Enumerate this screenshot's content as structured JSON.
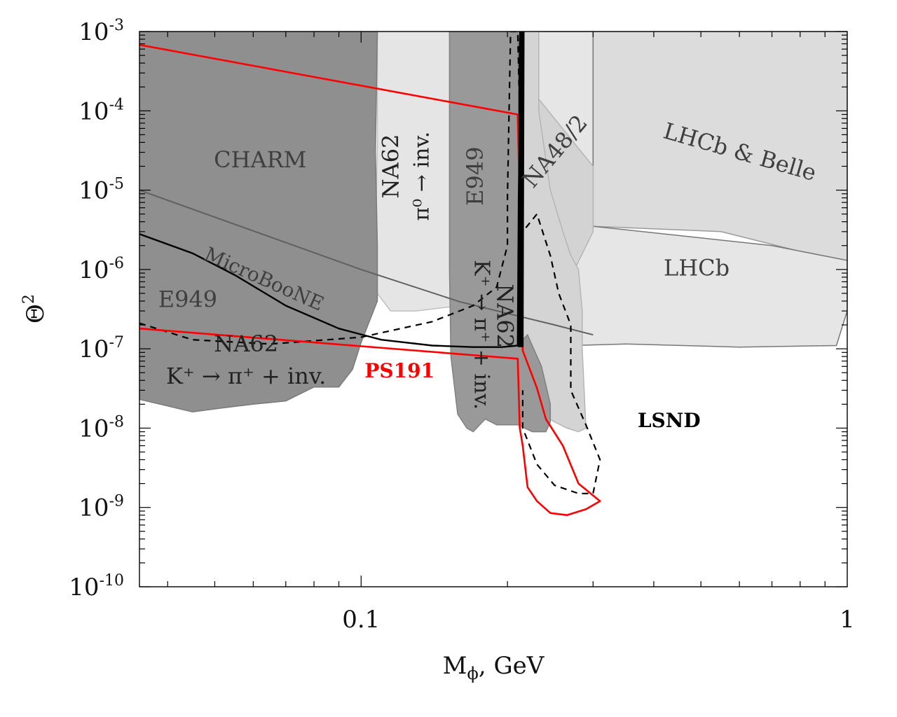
{
  "chart_data": {
    "type": "area",
    "xscale": "log",
    "yscale": "log",
    "xlim": [
      0.035,
      1
    ],
    "ylim": [
      1e-10,
      0.001
    ],
    "xlabel_main": "M",
    "xlabel_sub": "ϕ",
    "xlabel_rest": ", GeV",
    "ylabel_main": "Θ",
    "ylabel_sup": "2",
    "x_ticks": [
      {
        "value": 0.1,
        "label": "0.1"
      },
      {
        "value": 1,
        "label": "1"
      }
    ],
    "y_ticks": [
      {
        "value": 0.001,
        "base": "10",
        "exp": "-3"
      },
      {
        "value": 0.0001,
        "base": "10",
        "exp": "-4"
      },
      {
        "value": 1e-05,
        "base": "10",
        "exp": "-5"
      },
      {
        "value": 1e-06,
        "base": "10",
        "exp": "-6"
      },
      {
        "value": 1e-07,
        "base": "10",
        "exp": "-7"
      },
      {
        "value": 1e-08,
        "base": "10",
        "exp": "-8"
      },
      {
        "value": 1e-09,
        "base": "10",
        "exp": "-9"
      },
      {
        "value": 1e-10,
        "base": "10",
        "exp": "-10"
      }
    ],
    "regions": [
      {
        "fill": "#dcdcdc",
        "stroke": "#9a9a9a",
        "points": [
          [
            0.3,
            0.001
          ],
          [
            1,
            0.001
          ],
          [
            1,
            1.2e-06
          ],
          [
            0.55,
            3e-06
          ],
          [
            0.3,
            3.5e-06
          ]
        ]
      },
      {
        "fill": "#e6e6e6",
        "stroke": "#777777",
        "points": [
          [
            0.215,
            0.001
          ],
          [
            0.3,
            0.001
          ],
          [
            0.3,
            3.5e-06
          ],
          [
            0.5,
            2.5e-06
          ],
          [
            0.7,
            2e-06
          ],
          [
            1,
            1.3e-06
          ],
          [
            1,
            3e-07
          ],
          [
            0.95,
            1.1e-07
          ],
          [
            0.6,
            1.05e-07
          ],
          [
            0.35,
            1.15e-07
          ],
          [
            0.27,
            1.1e-07
          ],
          [
            0.215,
            1.1e-07
          ]
        ]
      },
      {
        "fill": "#d3d3d3",
        "stroke": "#b5b5b5",
        "points": [
          [
            0.215,
            0.001
          ],
          [
            0.23,
            0.001
          ],
          [
            0.23,
            0.00015
          ],
          [
            0.3,
            2e-05
          ],
          [
            0.3,
            3e-06
          ],
          [
            0.27,
            8e-07
          ],
          [
            0.255,
            3e-06
          ],
          [
            0.24,
            8e-06
          ],
          [
            0.225,
            1.5e-05
          ]
        ]
      },
      {
        "fill": "#e5e5e5",
        "stroke": "#c0c0c0",
        "points": [
          [
            0.108,
            0.001
          ],
          [
            0.21,
            0.001
          ],
          [
            0.215,
            3e-07
          ],
          [
            0.21,
            4e-07
          ],
          [
            0.19,
            4e-07
          ],
          [
            0.16,
            3.5e-07
          ],
          [
            0.13,
            3e-07
          ],
          [
            0.115,
            3e-07
          ],
          [
            0.108,
            5e-07
          ],
          [
            0.107,
            2e-06
          ],
          [
            0.108,
            4e-05
          ]
        ]
      },
      {
        "fill": "#d4d4d4",
        "stroke": "#b5b5b5",
        "points": [
          [
            0.215,
            0.001
          ],
          [
            0.232,
            0.001
          ],
          [
            0.232,
            0.0001
          ],
          [
            0.245,
            1e-05
          ],
          [
            0.26,
            3e-06
          ],
          [
            0.27,
            1.5e-06
          ],
          [
            0.28,
            1e-06
          ],
          [
            0.285,
            3e-07
          ],
          [
            0.285,
            1e-07
          ],
          [
            0.29,
            1e-08
          ],
          [
            0.28,
            9e-09
          ],
          [
            0.265,
            1e-08
          ],
          [
            0.25,
            1.2e-08
          ],
          [
            0.235,
            1.5e-08
          ],
          [
            0.215,
            3e-08
          ]
        ]
      },
      {
        "fill": "#8f8f8f",
        "stroke": "#7a7a7a",
        "points": [
          [
            0.035,
            0.001
          ],
          [
            0.108,
            0.001
          ],
          [
            0.107,
            3e-05
          ],
          [
            0.108,
            2e-06
          ],
          [
            0.108,
            4e-07
          ],
          [
            0.1,
            1.2e-07
          ],
          [
            0.096,
            5.5e-08
          ],
          [
            0.09,
            3.3e-08
          ],
          [
            0.08,
            3.3e-08
          ],
          [
            0.07,
            2.2e-08
          ],
          [
            0.06,
            2e-08
          ],
          [
            0.052,
            1.8e-08
          ],
          [
            0.045,
            1.6e-08
          ],
          [
            0.04,
            1.9e-08
          ],
          [
            0.035,
            2.3e-08
          ]
        ]
      },
      {
        "fill": "#999999",
        "stroke": "#808080",
        "points": [
          [
            0.152,
            0.001
          ],
          [
            0.21,
            0.001
          ],
          [
            0.213,
            1e-06
          ],
          [
            0.215,
            1.3e-07
          ],
          [
            0.22,
            1.5e-07
          ],
          [
            0.235,
            6e-08
          ],
          [
            0.245,
            2e-08
          ],
          [
            0.245,
            1.2e-08
          ],
          [
            0.24,
            9e-09
          ],
          [
            0.225,
            9e-09
          ],
          [
            0.21,
            1.1e-08
          ],
          [
            0.19,
            1.1e-08
          ],
          [
            0.18,
            1.3e-08
          ],
          [
            0.17,
            9e-09
          ],
          [
            0.165,
            1e-08
          ],
          [
            0.158,
            1.5e-08
          ],
          [
            0.153,
            8e-08
          ],
          [
            0.152,
            1e-06
          ]
        ]
      }
    ],
    "lines": [
      {
        "stroke": "#606060",
        "width": 2,
        "dash": "",
        "points": [
          [
            0.035,
            1e-05
          ],
          [
            0.1,
            1e-06
          ],
          [
            0.16,
            3.9e-07
          ],
          [
            0.25,
            2e-07
          ],
          [
            0.3,
            1.5e-07
          ]
        ]
      },
      {
        "stroke": "#000000",
        "width": 2.4,
        "dash": "",
        "points": [
          [
            0.035,
            2.8e-06
          ],
          [
            0.045,
            1.6e-06
          ],
          [
            0.055,
            8.5e-07
          ],
          [
            0.07,
            3.5e-07
          ],
          [
            0.09,
            1.8e-07
          ],
          [
            0.11,
            1.3e-07
          ],
          [
            0.14,
            1.1e-07
          ],
          [
            0.17,
            1.05e-07
          ],
          [
            0.195,
            1.05e-07
          ],
          [
            0.21,
            1.1e-07
          ],
          [
            0.212,
            0.001
          ]
        ]
      },
      {
        "stroke": "#000000",
        "width": 2.2,
        "dash": "9,7",
        "points": [
          [
            0.035,
            2.1e-07
          ],
          [
            0.045,
            1.3e-07
          ],
          [
            0.065,
            1.15e-07
          ],
          [
            0.1,
            1.4e-07
          ],
          [
            0.14,
            2.2e-07
          ],
          [
            0.17,
            3.5e-07
          ],
          [
            0.19,
            6e-07
          ],
          [
            0.2,
            2e-06
          ],
          [
            0.2,
            8e-06
          ],
          [
            0.203,
            0.001
          ],
          [
            0.21,
            0.001
          ],
          [
            0.215,
            3e-06
          ],
          [
            0.23,
            5e-06
          ],
          [
            0.245,
            1.5e-06
          ],
          [
            0.255,
            5e-07
          ],
          [
            0.27,
            2e-07
          ],
          [
            0.27,
            3e-08
          ],
          [
            0.29,
            1.1e-08
          ],
          [
            0.31,
            4e-09
          ],
          [
            0.3,
            1.5e-09
          ],
          [
            0.28,
            1.5e-09
          ],
          [
            0.25,
            1.9e-09
          ],
          [
            0.23,
            3.5e-09
          ],
          [
            0.215,
            1e-08
          ],
          [
            0.215,
            3e-08
          ]
        ]
      },
      {
        "stroke": "#ff0000",
        "width": 2.6,
        "dash": "",
        "points": [
          [
            0.035,
            0.00068
          ],
          [
            0.21,
            9e-05
          ],
          [
            0.215,
            9.5e-08
          ],
          [
            0.23,
            3.2e-08
          ],
          [
            0.24,
            1.3e-08
          ],
          [
            0.26,
            6e-09
          ],
          [
            0.28,
            2e-09
          ],
          [
            0.31,
            1.2e-09
          ],
          [
            0.29,
            9.5e-10
          ],
          [
            0.265,
            8e-10
          ],
          [
            0.245,
            8.5e-10
          ],
          [
            0.23,
            1.2e-09
          ],
          [
            0.22,
            1.8e-09
          ],
          [
            0.215,
            6e-09
          ],
          [
            0.212,
            1e-08
          ],
          [
            0.21,
            7.5e-08
          ],
          [
            0.035,
            1.8e-07
          ]
        ]
      },
      {
        "stroke": "#000000",
        "width": 8,
        "dash": "",
        "points": [
          [
            0.213,
            1.05e-07
          ],
          [
            0.214,
            0.001
          ]
        ]
      }
    ],
    "labels": [
      {
        "text": "CHARM",
        "x": 0.062,
        "y": 2.3e-05,
        "size": 32,
        "rot": 0,
        "color": "#3f3f3f",
        "family": "sans",
        "weight": "normal"
      },
      {
        "text": "E949",
        "x": 0.044,
        "y": 4e-07,
        "size": 32,
        "rot": 0,
        "color": "#3f3f3f",
        "family": "sans",
        "weight": "normal"
      },
      {
        "text": "NA62",
        "x": 0.058,
        "y": 1.1e-07,
        "size": 32,
        "rot": 0,
        "color": "#222222",
        "family": "sans",
        "weight": "normal"
      },
      {
        "text": "K⁺ → π⁺ + inv.",
        "x": 0.058,
        "y": 4.3e-08,
        "size": 32,
        "rot": 0,
        "color": "#222222",
        "family": "sans",
        "weight": "normal"
      },
      {
        "text": "MicroBooNE",
        "x": 0.063,
        "y": 7.3e-07,
        "size": 28,
        "rot": 24,
        "color": "#3f3f3f",
        "family": "serif",
        "weight": "normal"
      },
      {
        "text": "NA62",
        "x": 0.116,
        "y": 2e-05,
        "size": 32,
        "rot": -90,
        "color": "#222222",
        "family": "sans",
        "weight": "normal"
      },
      {
        "text": "π⁰ → inv.",
        "x": 0.134,
        "y": 1.5e-05,
        "size": 30,
        "rot": -90,
        "color": "#222222",
        "family": "sans",
        "weight": "normal"
      },
      {
        "text": "E949",
        "x": 0.173,
        "y": 1.5e-05,
        "size": 32,
        "rot": -90,
        "color": "#3f3f3f",
        "family": "sans",
        "weight": "normal"
      },
      {
        "text": "K⁺ → π⁺ + inv.",
        "x": 0.176,
        "y": 1.5e-07,
        "size": 30,
        "rot": 90,
        "color": "#222222",
        "family": "sans",
        "weight": "normal"
      },
      {
        "text": "NA62",
        "x": 0.196,
        "y": 2.6e-07,
        "size": 32,
        "rot": 90,
        "color": "#222222",
        "family": "sans",
        "weight": "normal"
      },
      {
        "text": "NA48/2",
        "x": 0.252,
        "y": 3e-05,
        "size": 32,
        "rot": -50,
        "color": "#3f3f3f",
        "family": "sans",
        "weight": "normal"
      },
      {
        "text": "LHCb & Belle",
        "x": 0.6,
        "y": 2.9e-05,
        "size": 32,
        "rot": 16,
        "color": "#3f3f3f",
        "family": "sans",
        "weight": "normal"
      },
      {
        "text": "LHCb",
        "x": 0.49,
        "y": 1e-06,
        "size": 32,
        "rot": 0,
        "color": "#3f3f3f",
        "family": "sans",
        "weight": "normal"
      },
      {
        "text": "PS191",
        "x": 0.12,
        "y": 5.1e-08,
        "size": 28,
        "rot": 0,
        "color": "#ff0000",
        "family": "serif",
        "weight": "bold"
      },
      {
        "text": "LSND",
        "x": 0.43,
        "y": 1.2e-08,
        "size": 28,
        "rot": 0,
        "color": "#000000",
        "family": "serif",
        "weight": "bold"
      }
    ]
  }
}
